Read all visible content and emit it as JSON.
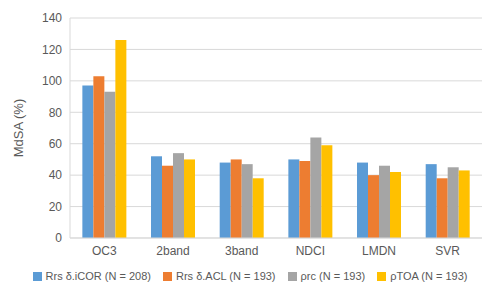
{
  "chart_data": {
    "type": "bar",
    "y_label": "MdSA (%)",
    "categories": [
      "OC3",
      "2band",
      "3band",
      "NDCI",
      "LMDN",
      "SVR"
    ],
    "series": [
      {
        "name": "Rrs δ.iCOR (N = 208)",
        "color": "#5B9BD5",
        "values": [
          97,
          52,
          48,
          50,
          48,
          47
        ]
      },
      {
        "name": "Rrs δ.ACL (N = 193)",
        "color": "#ED7D31",
        "values": [
          103,
          46,
          50,
          49,
          40,
          38
        ]
      },
      {
        "name": "ρrc (N = 193)",
        "color": "#A5A5A5",
        "values": [
          93,
          54,
          47,
          64,
          46,
          45
        ]
      },
      {
        "name": "ρTOA (N = 193)",
        "color": "#FFC000",
        "values": [
          126,
          50,
          38,
          59,
          42,
          43
        ]
      }
    ],
    "ylim": [
      0,
      140
    ],
    "yticks": [
      0,
      20,
      40,
      60,
      80,
      100,
      120,
      140
    ],
    "grid": true,
    "legend": "bottom"
  }
}
